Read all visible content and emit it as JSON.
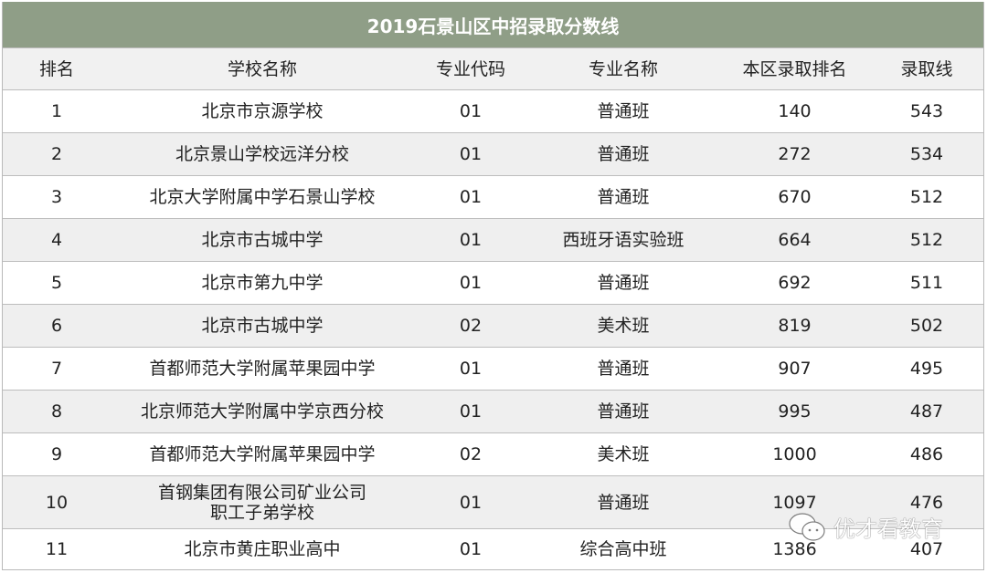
{
  "title": "2019石景山区中招录取分数线",
  "columns": [
    "排名",
    "学校名称",
    "专业代码",
    "专业名称",
    "本区录取排名",
    "录取线"
  ],
  "rows": [
    [
      "1",
      "北京市京源学校",
      "01",
      "普通班",
      "140",
      "543"
    ],
    [
      "2",
      "北京景山学校远洋分校",
      "01",
      "普通班",
      "272",
      "534"
    ],
    [
      "3",
      "北京大学附属中学石景山学校",
      "01",
      "普通班",
      "670",
      "512"
    ],
    [
      "4",
      "北京市古城中学",
      "01",
      "西班牙语实验班",
      "664",
      "512"
    ],
    [
      "5",
      "北京市第九中学",
      "01",
      "普通班",
      "692",
      "511"
    ],
    [
      "6",
      "北京市古城中学",
      "02",
      "美术班",
      "819",
      "502"
    ],
    [
      "7",
      "首都师范大学附属苹果园中学",
      "01",
      "普通班",
      "907",
      "495"
    ],
    [
      "8",
      "北京师范大学附属中学京西分校",
      "01",
      "普通班",
      "995",
      "487"
    ],
    [
      "9",
      "首都师范大学附属苹果园中学",
      "02",
      "美术班",
      "1000",
      "486"
    ],
    [
      "10",
      "首钢集团有限公司矿业公司\n职工子弟学校",
      "01",
      "普通班",
      "1097",
      "476"
    ],
    [
      "11",
      "北京市黄庄职业高中",
      "01",
      "综合高中班",
      "1386",
      "407"
    ]
  ],
  "watermark": {
    "icon": "wechat-icon",
    "text": "优才看教育"
  },
  "colors": {
    "title_bg": "#8f9e87",
    "header_bg": "#f1f1f1",
    "stripe_bg": "#efefef"
  }
}
